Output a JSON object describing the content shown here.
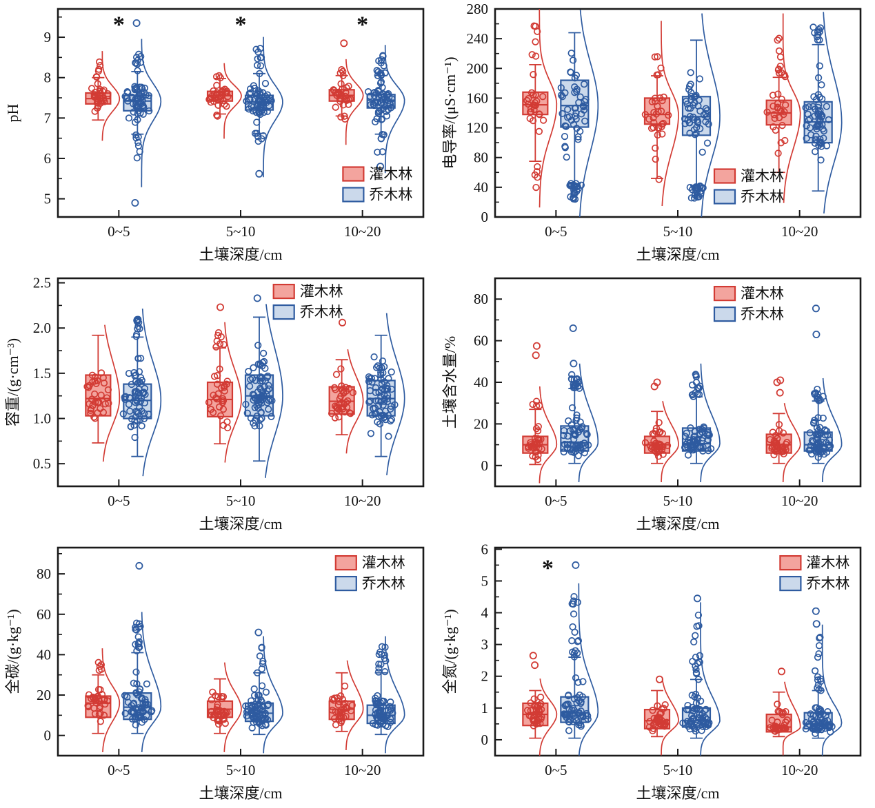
{
  "figure": {
    "xlabel": "土壤深度/cm",
    "categories": [
      "0~5",
      "5~10",
      "10~20"
    ],
    "significance_marker": "*",
    "text_color": "#111111",
    "axis_color": "#1a1a1a",
    "series": [
      {
        "key": "shrub",
        "label": "灌木林",
        "stroke": "#d23b34",
        "fill": "#f3a49e"
      },
      {
        "key": "arbor",
        "label": "乔木林",
        "stroke": "#2e5ba0",
        "fill": "#cbd9eb"
      }
    ]
  },
  "chart_data": [
    {
      "id": "ph",
      "type": "box-jitter-violin",
      "ylabel": "pH",
      "ylim": [
        4.55,
        9.7
      ],
      "yticks": [
        5,
        6,
        7,
        8,
        9
      ],
      "ytick_labels": [
        "5",
        "6",
        "7",
        "8",
        "9"
      ],
      "minor_step": 0.5,
      "legend_pos": {
        "x": 0.78,
        "y": 0.76
      },
      "significance": [
        {
          "cat": 0,
          "y": 9.35,
          "dx": 0
        },
        {
          "cat": 1,
          "y": 9.35,
          "dx": 0
        },
        {
          "cat": 2,
          "y": 9.35,
          "dx": 0
        }
      ],
      "groups": [
        {
          "shrub": {
            "w_lo": 6.95,
            "q1": 7.35,
            "med": 7.48,
            "q3": 7.62,
            "w_hi": 8.0,
            "pts_lo": 6.9,
            "pts_hi": 8.4,
            "outliers": [],
            "n": 34
          },
          "arbor": {
            "w_lo": 6.6,
            "q1": 7.18,
            "med": 7.42,
            "q3": 7.56,
            "w_hi": 8.15,
            "pts_lo": 5.75,
            "pts_hi": 8.7,
            "outliers": [
              4.9,
              9.35
            ],
            "n": 70
          }
        },
        {
          "shrub": {
            "w_lo": 7.1,
            "q1": 7.42,
            "med": 7.55,
            "q3": 7.66,
            "w_hi": 7.98,
            "pts_lo": 6.95,
            "pts_hi": 8.1,
            "outliers": [],
            "n": 34
          },
          "arbor": {
            "w_lo": 6.62,
            "q1": 7.2,
            "med": 7.4,
            "q3": 7.56,
            "w_hi": 8.1,
            "pts_lo": 6.0,
            "pts_hi": 8.75,
            "outliers": [
              5.62
            ],
            "n": 70
          }
        },
        {
          "shrub": {
            "w_lo": 7.05,
            "q1": 7.42,
            "med": 7.56,
            "q3": 7.7,
            "w_hi": 8.05,
            "pts_lo": 6.8,
            "pts_hi": 8.2,
            "outliers": [
              8.85
            ],
            "n": 34
          },
          "arbor": {
            "w_lo": 6.6,
            "q1": 7.25,
            "med": 7.44,
            "q3": 7.58,
            "w_hi": 8.05,
            "pts_lo": 6.1,
            "pts_hi": 8.55,
            "outliers": [
              5.8
            ],
            "n": 70
          }
        }
      ]
    },
    {
      "id": "ec",
      "type": "box-jitter-violin",
      "ylabel": "电导率/(μS·cm⁻¹)",
      "ylim": [
        0,
        280
      ],
      "yticks": [
        0,
        40,
        80,
        120,
        160,
        200,
        240,
        280
      ],
      "ytick_labels": [
        "0",
        "40",
        "80",
        "120",
        "160",
        "200",
        "240",
        "280"
      ],
      "minor_step": 20,
      "legend_pos": {
        "x": 0.6,
        "y": 0.77
      },
      "significance": [],
      "groups": [
        {
          "shrub": {
            "w_lo": 75,
            "q1": 138,
            "med": 151,
            "q3": 168,
            "w_hi": 205,
            "pts_lo": 38,
            "pts_hi": 268,
            "outliers": [],
            "n": 34
          },
          "arbor": {
            "w_lo": 45,
            "q1": 121,
            "med": 150,
            "q3": 184,
            "w_hi": 248,
            "pts_lo": 22,
            "pts_hi": 265,
            "outliers": [],
            "n": 70
          }
        },
        {
          "shrub": {
            "w_lo": 52,
            "q1": 125,
            "med": 138,
            "q3": 160,
            "w_hi": 190,
            "pts_lo": 40,
            "pts_hi": 250,
            "outliers": [],
            "n": 34
          },
          "arbor": {
            "w_lo": 42,
            "q1": 110,
            "med": 135,
            "q3": 162,
            "w_hi": 238,
            "pts_lo": 25,
            "pts_hi": 260,
            "outliers": [],
            "n": 70
          }
        },
        {
          "shrub": {
            "w_lo": 60,
            "q1": 124,
            "med": 140,
            "q3": 157,
            "w_hi": 188,
            "pts_lo": 44,
            "pts_hi": 260,
            "outliers": [],
            "n": 34
          },
          "arbor": {
            "w_lo": 35,
            "q1": 100,
            "med": 128,
            "q3": 155,
            "w_hi": 232,
            "pts_lo": 30,
            "pts_hi": 262,
            "outliers": [],
            "n": 70
          }
        }
      ]
    },
    {
      "id": "bulk-density",
      "type": "box-jitter-violin",
      "ylabel": "容重/(g·cm⁻³)",
      "ylim": [
        0.25,
        2.55
      ],
      "yticks": [
        0.5,
        1.0,
        1.5,
        2.0,
        2.5
      ],
      "ytick_labels": [
        "0.5",
        "1.0",
        "1.5",
        "2.0",
        "2.5"
      ],
      "minor_step": 0.25,
      "legend_pos": {
        "x": 0.59,
        "y": 0.03
      },
      "significance": [],
      "groups": [
        {
          "shrub": {
            "w_lo": 0.73,
            "q1": 1.03,
            "med": 1.22,
            "q3": 1.48,
            "w_hi": 1.92,
            "pts_lo": 0.73,
            "pts_hi": 1.92,
            "outliers": [],
            "n": 34
          },
          "arbor": {
            "w_lo": 0.58,
            "q1": 1.0,
            "med": 1.2,
            "q3": 1.38,
            "w_hi": 1.9,
            "pts_lo": 0.57,
            "pts_hi": 2.1,
            "outliers": [],
            "n": 70
          }
        },
        {
          "shrub": {
            "w_lo": 0.72,
            "q1": 1.02,
            "med": 1.21,
            "q3": 1.4,
            "w_hi": 1.78,
            "pts_lo": 0.72,
            "pts_hi": 1.95,
            "outliers": [
              2.23
            ],
            "n": 34
          },
          "arbor": {
            "w_lo": 0.53,
            "q1": 1.03,
            "med": 1.25,
            "q3": 1.48,
            "w_hi": 2.12,
            "pts_lo": 0.55,
            "pts_hi": 2.15,
            "outliers": [
              2.33
            ],
            "n": 70
          }
        },
        {
          "shrub": {
            "w_lo": 0.82,
            "q1": 1.05,
            "med": 1.19,
            "q3": 1.35,
            "w_hi": 1.65,
            "pts_lo": 0.82,
            "pts_hi": 1.65,
            "outliers": [
              2.06
            ],
            "n": 34
          },
          "arbor": {
            "w_lo": 0.58,
            "q1": 1.03,
            "med": 1.22,
            "q3": 1.42,
            "w_hi": 1.92,
            "pts_lo": 0.58,
            "pts_hi": 2.05,
            "outliers": [],
            "n": 70
          }
        }
      ]
    },
    {
      "id": "soil-water",
      "type": "box-jitter-violin",
      "ylabel": "土壤含水量/%",
      "ylim": [
        -10,
        90
      ],
      "yticks": [
        0,
        20,
        40,
        60,
        80
      ],
      "ytick_labels": [
        "0",
        "20",
        "40",
        "60",
        "80"
      ],
      "minor_step": 10,
      "legend_pos": {
        "x": 0.6,
        "y": 0.04
      },
      "significance": [],
      "groups": [
        {
          "shrub": {
            "w_lo": 0.5,
            "q1": 6,
            "med": 10,
            "q3": 14,
            "w_hi": 27,
            "pts_lo": 0.5,
            "pts_hi": 33,
            "outliers": [
              53,
              57.5
            ],
            "n": 34
          },
          "arbor": {
            "w_lo": 1,
            "q1": 7,
            "med": 11,
            "q3": 19,
            "w_hi": 37,
            "pts_lo": 1,
            "pts_hi": 44,
            "outliers": [
              49,
              66
            ],
            "n": 70
          }
        },
        {
          "shrub": {
            "w_lo": 1,
            "q1": 6,
            "med": 10,
            "q3": 14,
            "w_hi": 26,
            "pts_lo": 1,
            "pts_hi": 26,
            "outliers": [
              38,
              40
            ],
            "n": 34
          },
          "arbor": {
            "w_lo": 1,
            "q1": 7,
            "med": 10.5,
            "q3": 18,
            "w_hi": 33,
            "pts_lo": 1,
            "pts_hi": 44,
            "outliers": [],
            "n": 70
          }
        },
        {
          "shrub": {
            "w_lo": 1,
            "q1": 6,
            "med": 10,
            "q3": 15,
            "w_hi": 25,
            "pts_lo": 1,
            "pts_hi": 25,
            "outliers": [
              35,
              40,
              41
            ],
            "n": 34
          },
          "arbor": {
            "w_lo": 1,
            "q1": 7,
            "med": 10,
            "q3": 16,
            "w_hi": 31,
            "pts_lo": 1,
            "pts_hi": 37,
            "outliers": [
              63,
              75.5
            ],
            "n": 70
          }
        }
      ]
    },
    {
      "id": "total-carbon",
      "type": "box-jitter-violin",
      "ylabel": "全碳/(g·kg⁻¹)",
      "ylim": [
        -10,
        93
      ],
      "yticks": [
        0,
        20,
        40,
        60,
        80
      ],
      "ytick_labels": [
        "0",
        "20",
        "40",
        "60",
        "80"
      ],
      "minor_step": 10,
      "legend_pos": {
        "x": 0.76,
        "y": 0.04
      },
      "significance": [],
      "groups": [
        {
          "shrub": {
            "w_lo": 1,
            "q1": 9,
            "med": 16,
            "q3": 19.5,
            "w_hi": 30,
            "pts_lo": 1,
            "pts_hi": 38,
            "outliers": [],
            "n": 34
          },
          "arbor": {
            "w_lo": 1,
            "q1": 8,
            "med": 14,
            "q3": 21,
            "w_hi": 41,
            "pts_lo": 1,
            "pts_hi": 56,
            "outliers": [
              84
            ],
            "n": 70
          }
        },
        {
          "shrub": {
            "w_lo": 1,
            "q1": 9,
            "med": 13,
            "q3": 17,
            "w_hi": 28,
            "pts_lo": 1,
            "pts_hi": 31,
            "outliers": [],
            "n": 34
          },
          "arbor": {
            "w_lo": 0.5,
            "q1": 7,
            "med": 11,
            "q3": 16,
            "w_hi": 31,
            "pts_lo": 0.5,
            "pts_hi": 44,
            "outliers": [
              51
            ],
            "n": 70
          }
        },
        {
          "shrub": {
            "w_lo": 2,
            "q1": 8,
            "med": 13,
            "q3": 17,
            "w_hi": 31,
            "pts_lo": 2,
            "pts_hi": 32,
            "outliers": [],
            "n": 34
          },
          "arbor": {
            "w_lo": 0.5,
            "q1": 6,
            "med": 10,
            "q3": 15,
            "w_hi": 31,
            "pts_lo": 0.5,
            "pts_hi": 44,
            "outliers": [],
            "n": 70
          }
        }
      ]
    },
    {
      "id": "total-nitrogen",
      "type": "box-jitter-violin",
      "ylabel": "全氮/(g·kg⁻¹)",
      "ylim": [
        -0.5,
        6.05
      ],
      "yticks": [
        0,
        1,
        2,
        3,
        4,
        5,
        6
      ],
      "ytick_labels": [
        "0",
        "1",
        "2",
        "3",
        "4",
        "5",
        "6"
      ],
      "minor_step": 0.5,
      "legend_pos": {
        "x": 0.78,
        "y": 0.04
      },
      "significance": [
        {
          "cat": 0,
          "y": 5.45,
          "dx": -12
        }
      ],
      "groups": [
        {
          "shrub": {
            "w_lo": 0.05,
            "q1": 0.45,
            "med": 0.8,
            "q3": 1.15,
            "w_hi": 1.55,
            "pts_lo": 0.05,
            "pts_hi": 1.6,
            "outliers": [
              2.35,
              2.65
            ],
            "n": 34
          },
          "arbor": {
            "w_lo": 0.05,
            "q1": 0.55,
            "med": 0.85,
            "q3": 1.35,
            "w_hi": 2.6,
            "pts_lo": 0.05,
            "pts_hi": 4.6,
            "outliers": [
              5.5
            ],
            "n": 70
          }
        },
        {
          "shrub": {
            "w_lo": 0.1,
            "q1": 0.35,
            "med": 0.6,
            "q3": 0.95,
            "w_hi": 1.55,
            "pts_lo": 0.1,
            "pts_hi": 1.6,
            "outliers": [
              1.9
            ],
            "n": 34
          },
          "arbor": {
            "w_lo": 0.05,
            "q1": 0.4,
            "med": 0.6,
            "q3": 1.0,
            "w_hi": 1.9,
            "pts_lo": 0.05,
            "pts_hi": 4.0,
            "outliers": [
              4.45
            ],
            "n": 70
          }
        },
        {
          "shrub": {
            "w_lo": 0.1,
            "q1": 0.25,
            "med": 0.4,
            "q3": 0.8,
            "w_hi": 1.5,
            "pts_lo": 0.1,
            "pts_hi": 1.5,
            "outliers": [
              2.15
            ],
            "n": 34
          },
          "arbor": {
            "w_lo": 0.05,
            "q1": 0.35,
            "med": 0.5,
            "q3": 0.85,
            "w_hi": 1.55,
            "pts_lo": 0.05,
            "pts_hi": 3.3,
            "outliers": [
              3.65,
              4.05
            ],
            "n": 70
          }
        }
      ]
    }
  ]
}
